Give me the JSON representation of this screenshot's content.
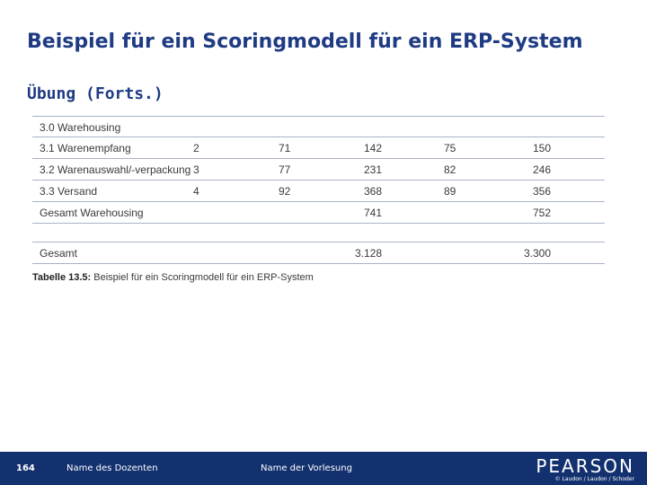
{
  "slide": {
    "title": "Beispiel für ein Scoringmodell für ein ERP-System",
    "subtitle": "Übung (Forts.)"
  },
  "table": {
    "rows": [
      [
        "3.0 Warehousing",
        "",
        "",
        "",
        "",
        ""
      ],
      [
        "3.1 Warenempfang",
        "2",
        "71",
        "142",
        "75",
        "150"
      ],
      [
        "3.2 Warenauswahl/-verpackung",
        "3",
        "77",
        "231",
        "82",
        "246"
      ],
      [
        "3.3 Versand",
        "4",
        "92",
        "368",
        "89",
        "356"
      ],
      [
        "Gesamt Warehousing",
        "",
        "",
        "741",
        "",
        "752"
      ]
    ],
    "total": [
      "Gesamt",
      "",
      "",
      "3.128",
      "",
      "3.300"
    ]
  },
  "caption": {
    "label": "Tabelle 13.5:",
    "text": " Beispiel für ein Scoringmodell für ein ERP-System"
  },
  "footer": {
    "page_number": "164",
    "lecturer": "Name des Dozenten",
    "lecture": "Name der Vorlesung",
    "brand": "PEARSON",
    "copyright": "© Laudon / Laudon / Schoder"
  },
  "colors": {
    "title": "#1f3b83",
    "footer_bg": "#13316f",
    "rule": "#a9b3c4"
  }
}
